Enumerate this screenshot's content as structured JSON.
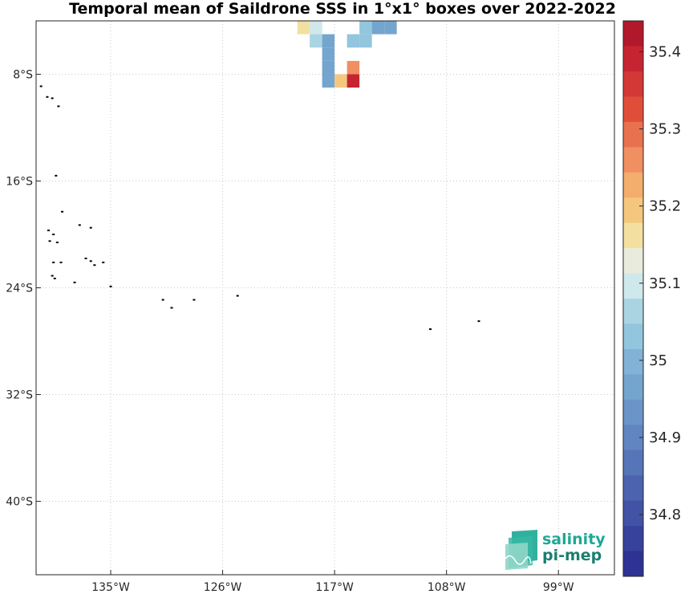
{
  "title": "Temporal mean of Saildrone SSS in 1°x1° boxes over 2022-2022",
  "logo": {
    "line1": "salinity",
    "line2": "pi-mep"
  },
  "chart_data": {
    "type": "heatmap",
    "title": "Temporal mean of Saildrone SSS in 1°x1° boxes over 2022-2022",
    "xlabel": "",
    "ylabel": "",
    "xlim": [
      -141,
      -94.5
    ],
    "ylim": [
      -45.5,
      -4
    ],
    "grid": true,
    "x_tick_values": [
      -135,
      -126,
      -117,
      -108,
      -99
    ],
    "x_tick_labels": [
      "135°W",
      "126°W",
      "117°W",
      "108°W",
      "99°W"
    ],
    "y_tick_values": [
      -8,
      -16,
      -24,
      -32,
      -40
    ],
    "y_tick_labels": [
      "8°S",
      "16°S",
      "24°S",
      "32°S",
      "40°S"
    ],
    "colorbar": {
      "min": 34.72,
      "max": 35.44,
      "ticks": [
        35.4,
        35.3,
        35.2,
        35.1,
        35,
        34.9,
        34.8
      ],
      "tick_labels": [
        "35.4",
        "35.3",
        "35.2",
        "35.1",
        "35",
        "34.9",
        "34.8"
      ],
      "colors": [
        "#b2182b",
        "#c62431",
        "#d33837",
        "#e04e3a",
        "#e8714f",
        "#ef8f62",
        "#f3ad6c",
        "#f5c77e",
        "#f3e0a0",
        "#e9ecdc",
        "#cfe8ec",
        "#aad4e2",
        "#92c5de",
        "#82b2d6",
        "#74a5cf",
        "#6a95c9",
        "#6085c1",
        "#5675b9",
        "#4c64b0",
        "#4253a6",
        "#37429d",
        "#2d3294"
      ]
    },
    "cells": [
      {
        "lon": -119.5,
        "lat": -4.5,
        "sss": 35.16
      },
      {
        "lon": -118.5,
        "lat": -4.5,
        "sss": 35.09
      },
      {
        "lon": -118.5,
        "lat": -5.5,
        "sss": 35.05
      },
      {
        "lon": -117.5,
        "lat": -5.5,
        "sss": 34.98
      },
      {
        "lon": -117.5,
        "lat": -6.5,
        "sss": 34.98
      },
      {
        "lon": -117.5,
        "lat": -7.5,
        "sss": 34.97
      },
      {
        "lon": -117.5,
        "lat": -8.5,
        "sss": 34.96
      },
      {
        "lon": -116.5,
        "lat": -8.5,
        "sss": 35.19
      },
      {
        "lon": -115.5,
        "lat": -8.5,
        "sss": 35.4
      },
      {
        "lon": -115.5,
        "lat": -7.5,
        "sss": 35.26
      },
      {
        "lon": -115.5,
        "lat": -5.5,
        "sss": 35.02
      },
      {
        "lon": -114.5,
        "lat": -5.5,
        "sss": 35.02
      },
      {
        "lon": -114.5,
        "lat": -4.5,
        "sss": 35.02
      },
      {
        "lon": -113.5,
        "lat": -4.5,
        "sss": 34.97
      },
      {
        "lon": -112.5,
        "lat": -4.5,
        "sss": 34.97
      }
    ],
    "land": [
      {
        "lon": -140.6,
        "lat": -8.9
      },
      {
        "lon": -140.1,
        "lat": -9.7
      },
      {
        "lon": -139.7,
        "lat": -9.8
      },
      {
        "lon": -139.2,
        "lat": -10.4
      },
      {
        "lon": -139.4,
        "lat": -15.6
      },
      {
        "lon": -138.9,
        "lat": -18.3
      },
      {
        "lon": -137.5,
        "lat": -19.3
      },
      {
        "lon": -136.6,
        "lat": -19.5
      },
      {
        "lon": -140.0,
        "lat": -19.7
      },
      {
        "lon": -139.6,
        "lat": -20.0
      },
      {
        "lon": -139.9,
        "lat": -20.5
      },
      {
        "lon": -139.3,
        "lat": -20.6
      },
      {
        "lon": -137.0,
        "lat": -21.8
      },
      {
        "lon": -136.6,
        "lat": -22.0
      },
      {
        "lon": -135.6,
        "lat": -22.1
      },
      {
        "lon": -136.3,
        "lat": -22.3
      },
      {
        "lon": -139.6,
        "lat": -22.1
      },
      {
        "lon": -139.0,
        "lat": -22.1
      },
      {
        "lon": -139.7,
        "lat": -23.1
      },
      {
        "lon": -139.5,
        "lat": -23.3
      },
      {
        "lon": -137.9,
        "lat": -23.6
      },
      {
        "lon": -135.0,
        "lat": -23.9
      },
      {
        "lon": -130.8,
        "lat": -24.9
      },
      {
        "lon": -130.1,
        "lat": -25.5
      },
      {
        "lon": -128.3,
        "lat": -24.9
      },
      {
        "lon": -124.8,
        "lat": -24.6
      },
      {
        "lon": -109.3,
        "lat": -27.1
      },
      {
        "lon": -105.4,
        "lat": -26.5
      }
    ]
  }
}
